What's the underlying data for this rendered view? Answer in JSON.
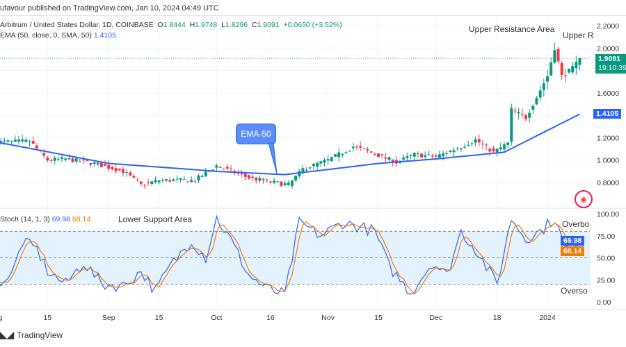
{
  "header": {
    "published": "ufavour published on TradingView.com, Jan 10, 2024 04:49 UTC"
  },
  "symbol": {
    "title": "Arbitrum / United States Dollar, 1D, COINBASE",
    "o_label": "O",
    "o": "1.8444",
    "h_label": "H",
    "h": "1.9748",
    "l_label": "L",
    "l": "1.8296",
    "c_label": "C",
    "c": "1.9091",
    "change": "+0.0650 (+3.52%)"
  },
  "ema": {
    "label": "EMA (50, close, 0, SMA, 50)",
    "value": "1.4105",
    "callout": "EMA-50"
  },
  "stoch": {
    "label": "Stoch (14, 1, 3)",
    "k": "69.98",
    "d": "68.14"
  },
  "annotations": {
    "upper1": "Upper Resistance Area",
    "upper2": "Upper R",
    "lower": "Lower Support Area",
    "overbought": "Overbo",
    "oversold": "Overso"
  },
  "price_tag": {
    "price": "1.9091",
    "countdown": "19:10:39"
  },
  "footer": {
    "brand": "TradingView"
  },
  "colors": {
    "up": "#089981",
    "down": "#f23645",
    "ema": "#2962ff",
    "k": "#2962ff",
    "d": "#f57c00",
    "band": "#e3f2fd"
  },
  "chart_data": [
    {
      "type": "candlestick",
      "title": "Arbitrum / United States Dollar, 1D, COINBASE",
      "y_ticks": [
        "2.2000",
        "2.0000",
        "1.6000",
        "1.2000",
        "1.0000",
        "0.8000"
      ],
      "ylim": [
        0.7,
        2.25
      ],
      "x_ticks": [
        "Aug",
        "15",
        "Sep",
        "15",
        "Oct",
        "16",
        "Nov",
        "15",
        "Dec",
        "18",
        "2024"
      ],
      "close_keypoints": [
        [
          "2023-08-01",
          1.16
        ],
        [
          "2023-08-10",
          1.17
        ],
        [
          "2023-08-15",
          1.0
        ],
        [
          "2023-08-20",
          1.01
        ],
        [
          "2023-08-28",
          0.97
        ],
        [
          "2023-09-05",
          0.9
        ],
        [
          "2023-09-10",
          0.78
        ],
        [
          "2023-09-15",
          0.82
        ],
        [
          "2023-09-25",
          0.82
        ],
        [
          "2023-10-01",
          0.95
        ],
        [
          "2023-10-10",
          0.84
        ],
        [
          "2023-10-17",
          0.8
        ],
        [
          "2023-10-21",
          0.78
        ],
        [
          "2023-10-25",
          0.92
        ],
        [
          "2023-11-01",
          1.0
        ],
        [
          "2023-11-08",
          1.12
        ],
        [
          "2023-11-12",
          1.08
        ],
        [
          "2023-11-20",
          0.98
        ],
        [
          "2023-11-25",
          1.05
        ],
        [
          "2023-12-01",
          1.03
        ],
        [
          "2023-12-08",
          1.12
        ],
        [
          "2023-12-12",
          1.18
        ],
        [
          "2023-12-17",
          1.07
        ],
        [
          "2023-12-21",
          1.15
        ],
        [
          "2023-12-22",
          1.45
        ],
        [
          "2023-12-26",
          1.38
        ],
        [
          "2023-12-28",
          1.5
        ],
        [
          "2024-01-01",
          1.75
        ],
        [
          "2024-01-03",
          2.0
        ],
        [
          "2024-01-05",
          1.75
        ],
        [
          "2024-01-08",
          1.82
        ],
        [
          "2024-01-10",
          1.9091
        ]
      ],
      "ema_keypoints": [
        [
          "2023-08-01",
          1.16
        ],
        [
          "2023-09-01",
          0.97
        ],
        [
          "2023-10-01",
          0.9
        ],
        [
          "2023-10-20",
          0.87
        ],
        [
          "2023-11-15",
          0.97
        ],
        [
          "2023-12-01",
          1.01
        ],
        [
          "2023-12-20",
          1.07
        ],
        [
          "2023-12-28",
          1.2
        ],
        [
          "2024-01-10",
          1.4105
        ]
      ]
    },
    {
      "type": "line",
      "title": "Stoch (14, 1, 3)",
      "y_ticks": [
        "100.00",
        "75.00",
        "50.00",
        "25.00",
        "0.00"
      ],
      "ylim": [
        0,
        100
      ],
      "bands": [
        20,
        80
      ],
      "k_keypoints": [
        [
          "2023-08-01",
          22
        ],
        [
          "2023-08-05",
          30
        ],
        [
          "2023-08-08",
          68
        ],
        [
          "2023-08-12",
          60
        ],
        [
          "2023-08-15",
          35
        ],
        [
          "2023-08-20",
          20
        ],
        [
          "2023-08-25",
          45
        ],
        [
          "2023-08-30",
          20
        ],
        [
          "2023-09-05",
          18
        ],
        [
          "2023-09-10",
          35
        ],
        [
          "2023-09-14",
          12
        ],
        [
          "2023-09-18",
          40
        ],
        [
          "2023-09-24",
          70
        ],
        [
          "2023-09-28",
          50
        ],
        [
          "2023-10-01",
          95
        ],
        [
          "2023-10-05",
          70
        ],
        [
          "2023-10-10",
          30
        ],
        [
          "2023-10-15",
          15
        ],
        [
          "2023-10-20",
          8
        ],
        [
          "2023-10-24",
          90
        ],
        [
          "2023-10-30",
          75
        ],
        [
          "2023-11-05",
          90
        ],
        [
          "2023-11-10",
          85
        ],
        [
          "2023-11-14",
          80
        ],
        [
          "2023-11-18",
          40
        ],
        [
          "2023-11-24",
          10
        ],
        [
          "2023-11-30",
          45
        ],
        [
          "2023-12-04",
          30
        ],
        [
          "2023-12-08",
          80
        ],
        [
          "2023-12-12",
          60
        ],
        [
          "2023-12-18",
          20
        ],
        [
          "2023-12-22",
          95
        ],
        [
          "2023-12-26",
          72
        ],
        [
          "2023-12-30",
          80
        ],
        [
          "2024-01-03",
          95
        ],
        [
          "2024-01-06",
          60
        ],
        [
          "2024-01-08",
          66
        ],
        [
          "2024-01-10",
          69.98
        ]
      ]
    }
  ]
}
